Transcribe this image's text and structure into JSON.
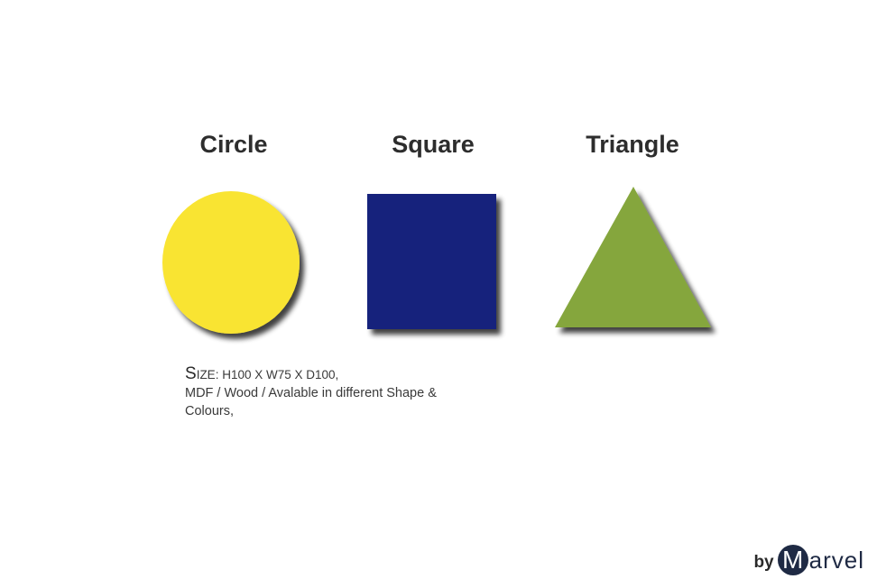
{
  "shapes": [
    {
      "label": "Circle",
      "shape": "circle",
      "color": "#f9e431"
    },
    {
      "label": "Square",
      "shape": "square",
      "color": "#15237c"
    },
    {
      "label": "Triangle",
      "shape": "triangle",
      "color": "#85a63c"
    }
  ],
  "description": {
    "size_initial": "S",
    "size_rest": "ize: H100 X W75 X D100,",
    "line2": "MDF / Wood / Avalable in different Shape &",
    "line3": "Colours,"
  },
  "brand": {
    "by": "by",
    "initial": "M",
    "rest": "arvel"
  }
}
